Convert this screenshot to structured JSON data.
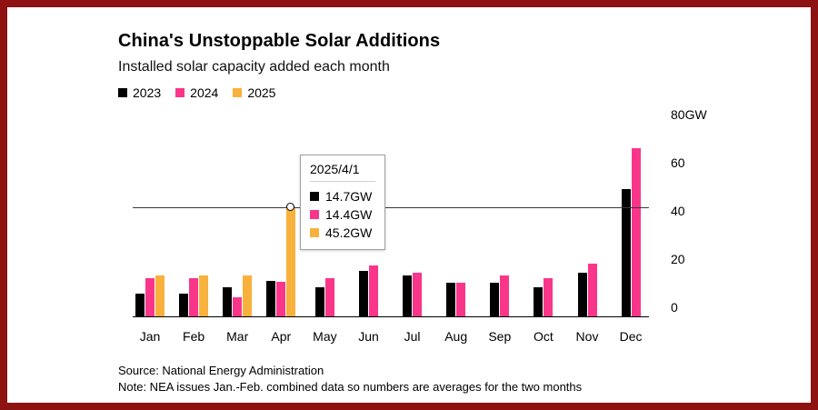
{
  "colors": {
    "frame": "#8e1212",
    "series_2023": "#000000",
    "series_2024": "#f9368a",
    "series_2025": "#f8b13c",
    "axis": "#000000"
  },
  "chart_data": {
    "type": "bar",
    "title": "China's Unstoppable Solar Additions",
    "subtitle": "Installed solar capacity added each month",
    "unit": "GW",
    "grid": false,
    "legend_position": "top",
    "categories": [
      "Jan",
      "Feb",
      "Mar",
      "Apr",
      "May",
      "Jun",
      "Jul",
      "Aug",
      "Sep",
      "Oct",
      "Nov",
      "Dec"
    ],
    "series": [
      {
        "name": "2023",
        "color": "#000000",
        "values": [
          9.5,
          9.5,
          12,
          14.7,
          12,
          19,
          17,
          14,
          14,
          12,
          18,
          53
        ]
      },
      {
        "name": "2024",
        "color": "#f9368a",
        "values": [
          16,
          16,
          8,
          14.4,
          16,
          21,
          18,
          14,
          17,
          16,
          22,
          70
        ]
      },
      {
        "name": "2025",
        "color": "#f8b13c",
        "values": [
          17,
          17,
          17,
          45.2,
          null,
          null,
          null,
          null,
          null,
          null,
          null,
          null
        ]
      }
    ],
    "ylim": [
      0,
      80
    ],
    "yticks": [
      {
        "value": 0,
        "label": "0"
      },
      {
        "value": 20,
        "label": "20"
      },
      {
        "value": 40,
        "label": "40"
      },
      {
        "value": 60,
        "label": "60"
      },
      {
        "value": 80,
        "label": "80GW"
      }
    ],
    "hover": {
      "category": "Apr",
      "series": "2025",
      "value": 45.2
    }
  },
  "tooltip": {
    "title": "2025/4/1",
    "rows": [
      {
        "series": "2023",
        "color": "#000000",
        "value": "14.7GW"
      },
      {
        "series": "2024",
        "color": "#f9368a",
        "value": "14.4GW"
      },
      {
        "series": "2025",
        "color": "#f8b13c",
        "value": "45.2GW"
      }
    ]
  },
  "footer": {
    "source": "Source: National Energy Administration",
    "note": "Note: NEA issues Jan.-Feb. combined data so numbers are averages for the two months"
  }
}
